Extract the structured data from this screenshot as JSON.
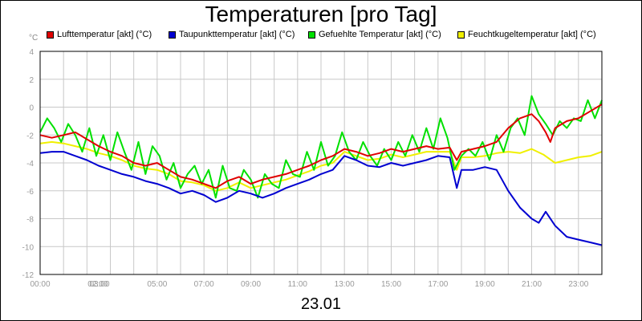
{
  "chart_data": {
    "type": "line",
    "title": "Temperaturen [pro Tag]",
    "ylabel": "°C",
    "xlabel": "23.01",
    "ylim": [
      -12,
      4
    ],
    "xlim": [
      0,
      24
    ],
    "yticks": [
      "4",
      "2",
      "0",
      "-2",
      "-4",
      "-6",
      "-8",
      "-10",
      "-12"
    ],
    "xticks": [
      {
        "label": "00:00",
        "x": 0
      },
      {
        "label": "02:00",
        "x": 2
      },
      {
        "label": "03:00",
        "x": 3
      },
      {
        "label": "05:00",
        "x": 5
      },
      {
        "label": "07:00",
        "x": 7
      },
      {
        "label": "09:00",
        "x": 9
      },
      {
        "label": "11:00",
        "x": 11
      },
      {
        "label": "13:00",
        "x": 13
      },
      {
        "label": "15:00",
        "x": 15
      },
      {
        "label": "17:00",
        "x": 17
      },
      {
        "label": "19:00",
        "x": 19
      },
      {
        "label": "21:00",
        "x": 21
      },
      {
        "label": "23:00",
        "x": 23
      }
    ],
    "grid": true,
    "legend": "top",
    "series": [
      {
        "name": "Lufttemperatur [akt] (°C)",
        "color": "#e00000",
        "x": [
          0,
          0.5,
          1,
          1.5,
          2,
          2.5,
          3,
          3.5,
          4,
          4.5,
          5,
          5.5,
          6,
          6.5,
          7,
          7.5,
          8,
          8.5,
          9,
          9.5,
          10,
          10.5,
          11,
          11.5,
          12,
          12.5,
          13,
          13.5,
          14,
          14.5,
          15,
          15.5,
          16,
          16.5,
          17,
          17.5,
          17.8,
          18,
          18.5,
          19,
          19.5,
          20,
          20.5,
          21,
          21.3,
          21.6,
          21.8,
          22,
          22.5,
          23,
          23.5,
          24
        ],
        "y": [
          -2.0,
          -2.2,
          -2.0,
          -1.8,
          -2.3,
          -2.8,
          -3.2,
          -3.5,
          -4.0,
          -4.2,
          -4.0,
          -4.5,
          -5.0,
          -5.2,
          -5.5,
          -5.8,
          -5.3,
          -5.0,
          -5.5,
          -5.2,
          -5.0,
          -4.8,
          -4.5,
          -4.2,
          -3.8,
          -3.5,
          -3.0,
          -3.2,
          -3.5,
          -3.3,
          -3.0,
          -3.2,
          -3.0,
          -2.8,
          -3.0,
          -2.9,
          -3.8,
          -3.2,
          -3.0,
          -2.8,
          -2.5,
          -1.5,
          -0.8,
          -0.5,
          -1.0,
          -1.8,
          -2.5,
          -1.5,
          -1.0,
          -0.8,
          -0.3,
          0.2
        ]
      },
      {
        "name": "Taupunkttemperatur [akt] (°C)",
        "color": "#0000d0",
        "x": [
          0,
          0.5,
          1,
          1.5,
          2,
          2.5,
          3,
          3.5,
          4,
          4.5,
          5,
          5.5,
          6,
          6.5,
          7,
          7.5,
          8,
          8.5,
          9,
          9.5,
          10,
          10.5,
          11,
          11.5,
          12,
          12.5,
          13,
          13.5,
          14,
          14.5,
          15,
          15.5,
          16,
          16.5,
          17,
          17.5,
          17.8,
          18,
          18.5,
          19,
          19.5,
          20,
          20.5,
          21,
          21.3,
          21.6,
          22,
          22.5,
          23,
          23.5,
          24
        ],
        "y": [
          -3.3,
          -3.2,
          -3.2,
          -3.5,
          -3.8,
          -4.2,
          -4.5,
          -4.8,
          -5.0,
          -5.3,
          -5.5,
          -5.8,
          -6.2,
          -6.0,
          -6.3,
          -6.8,
          -6.5,
          -6.0,
          -6.2,
          -6.5,
          -6.2,
          -5.8,
          -5.5,
          -5.2,
          -4.8,
          -4.5,
          -3.5,
          -3.8,
          -4.2,
          -4.3,
          -4.0,
          -4.2,
          -4.0,
          -3.8,
          -3.5,
          -3.6,
          -5.8,
          -4.5,
          -4.5,
          -4.3,
          -4.5,
          -6.0,
          -7.2,
          -8.0,
          -8.3,
          -7.5,
          -8.5,
          -9.3,
          -9.5,
          -9.7,
          -9.9
        ]
      },
      {
        "name": "Gefuehlte Temperatur [akt] (°C)",
        "color": "#00e000",
        "x": [
          0,
          0.3,
          0.6,
          0.9,
          1.2,
          1.5,
          1.8,
          2.1,
          2.4,
          2.7,
          3,
          3.3,
          3.6,
          3.9,
          4.2,
          4.5,
          4.8,
          5.1,
          5.4,
          5.7,
          6,
          6.3,
          6.6,
          6.9,
          7.2,
          7.5,
          7.8,
          8.1,
          8.4,
          8.7,
          9,
          9.3,
          9.6,
          9.9,
          10.2,
          10.5,
          10.8,
          11.1,
          11.4,
          11.7,
          12,
          12.3,
          12.6,
          12.9,
          13.2,
          13.5,
          13.8,
          14.1,
          14.4,
          14.7,
          15,
          15.3,
          15.6,
          15.9,
          16.2,
          16.5,
          16.8,
          17.1,
          17.4,
          17.7,
          18,
          18.3,
          18.6,
          18.9,
          19.2,
          19.5,
          19.8,
          20.1,
          20.4,
          20.7,
          21,
          21.3,
          21.6,
          21.9,
          22.2,
          22.5,
          22.8,
          23.1,
          23.4,
          23.7,
          24
        ],
        "y": [
          -1.8,
          -0.8,
          -1.5,
          -2.5,
          -1.2,
          -2.0,
          -3.2,
          -1.5,
          -3.5,
          -2.0,
          -3.8,
          -1.8,
          -3.2,
          -4.5,
          -2.5,
          -4.8,
          -2.8,
          -3.5,
          -5.2,
          -4.0,
          -5.8,
          -4.8,
          -4.2,
          -5.5,
          -4.5,
          -6.5,
          -4.2,
          -5.8,
          -6.0,
          -4.5,
          -5.2,
          -6.5,
          -4.8,
          -5.5,
          -5.8,
          -3.8,
          -4.8,
          -5.0,
          -3.2,
          -4.5,
          -2.5,
          -4.2,
          -3.5,
          -1.8,
          -3.2,
          -3.8,
          -2.5,
          -3.5,
          -4.2,
          -3.0,
          -3.8,
          -2.5,
          -3.5,
          -2.0,
          -3.2,
          -1.5,
          -3.0,
          -0.8,
          -2.2,
          -4.5,
          -3.5,
          -3.0,
          -3.5,
          -2.5,
          -3.8,
          -2.0,
          -3.2,
          -1.5,
          -0.8,
          -2.0,
          0.8,
          -0.5,
          -1.2,
          -2.0,
          -1.0,
          -1.5,
          -0.8,
          -1.0,
          0.5,
          -0.8,
          0.5
        ]
      },
      {
        "name": "Feuchtkugeltemperatur [akt] (°C)",
        "color": "#f0f000",
        "x": [
          0,
          0.5,
          1,
          1.5,
          2,
          2.5,
          3,
          3.5,
          4,
          4.5,
          5,
          5.5,
          6,
          6.5,
          7,
          7.5,
          8,
          8.5,
          9,
          9.5,
          10,
          10.5,
          11,
          11.5,
          12,
          12.5,
          13,
          13.5,
          14,
          14.5,
          15,
          15.5,
          16,
          16.5,
          17,
          17.5,
          17.8,
          18,
          18.5,
          19,
          19.5,
          20,
          20.5,
          21,
          21.5,
          22,
          22.5,
          23,
          23.5,
          24
        ],
        "y": [
          -2.6,
          -2.5,
          -2.6,
          -2.8,
          -3.0,
          -3.3,
          -3.5,
          -3.8,
          -4.2,
          -4.4,
          -4.5,
          -4.8,
          -5.3,
          -5.4,
          -5.6,
          -6.0,
          -5.8,
          -5.4,
          -5.8,
          -5.6,
          -5.4,
          -5.2,
          -4.9,
          -4.6,
          -4.2,
          -4.0,
          -3.2,
          -3.5,
          -3.8,
          -3.7,
          -3.4,
          -3.6,
          -3.4,
          -3.2,
          -3.2,
          -3.2,
          -4.5,
          -3.6,
          -3.6,
          -3.5,
          -3.3,
          -3.2,
          -3.3,
          -3.0,
          -3.4,
          -4.0,
          -3.8,
          -3.6,
          -3.5,
          -3.2
        ]
      }
    ]
  }
}
